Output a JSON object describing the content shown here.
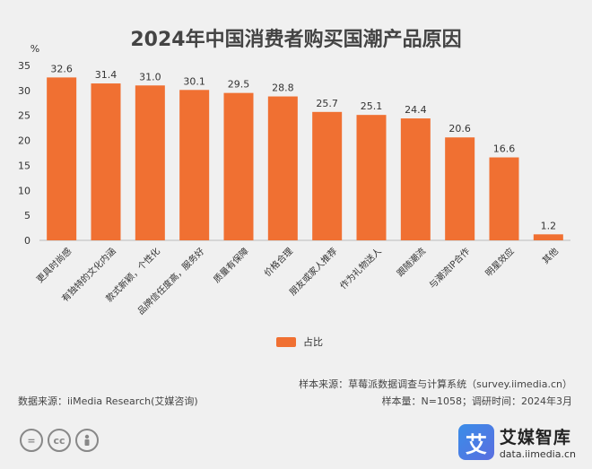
{
  "chart_data": {
    "type": "bar",
    "title": "2024年中国消费者购买国潮产品原因",
    "ylabel": "%",
    "ylim": [
      0,
      35
    ],
    "yticks": [
      0,
      5,
      10,
      15,
      20,
      25,
      30,
      35
    ],
    "grid": false,
    "legend_position": "bottom",
    "categories": [
      "更具时尚感",
      "有独特的文化内涵",
      "款式新颖，个性化",
      "品牌信任度高，服务好",
      "质量有保障",
      "价格合理",
      "朋友或家人推荐",
      "作为礼物送人",
      "跟随潮流",
      "与潮流IP合作",
      "明星效应",
      "其他"
    ],
    "series": [
      {
        "name": "占比",
        "values": [
          32.6,
          31.4,
          31.0,
          30.1,
          29.5,
          28.8,
          25.7,
          25.1,
          24.4,
          20.6,
          16.6,
          1.2
        ],
        "color": "#f07032"
      }
    ]
  },
  "notes": {
    "sample_source": "样本来源：草莓派数据调查与计算系统（survey.iimedia.cn）",
    "sample_meta": "样本量：N=1058；调研时间：2024年3月",
    "data_source": "数据来源：iiMedia Research(艾媒咨询)"
  },
  "license": {
    "cc_label": "cc"
  },
  "brand": {
    "mark": "艾",
    "name": "艾媒智库",
    "url": "data.iimedia.cn"
  },
  "colors": {
    "bar": "#f07032",
    "background": "#f0f0f0",
    "logo": "#5a6ee0"
  }
}
